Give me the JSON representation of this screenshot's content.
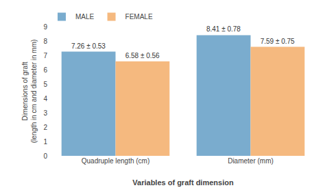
{
  "chart_data": {
    "type": "bar",
    "categories": [
      "Quadruple length (cm)",
      "Diameter (mm)"
    ],
    "series": [
      {
        "name": "MALE",
        "color": "#7aacce",
        "values": [
          7.26,
          8.41
        ],
        "value_labels": [
          "7.26 ± 0.53",
          "8.41 ± 0.78"
        ]
      },
      {
        "name": "FEMALE",
        "color": "#f5b97f",
        "values": [
          6.58,
          7.59
        ],
        "value_labels": [
          "6.58 ± 0.56",
          "7.59 ± 0.75"
        ]
      }
    ],
    "xlabel": "Variables of graft dimension",
    "ylabel": "Dimensions of graft\n(length in cm and diameter in mm)",
    "ylim": [
      0,
      9
    ],
    "yticks": [
      0,
      1,
      2,
      3,
      4,
      5,
      6,
      7,
      8,
      9
    ],
    "grid": false,
    "legend": "upper left",
    "data_labels": true
  }
}
